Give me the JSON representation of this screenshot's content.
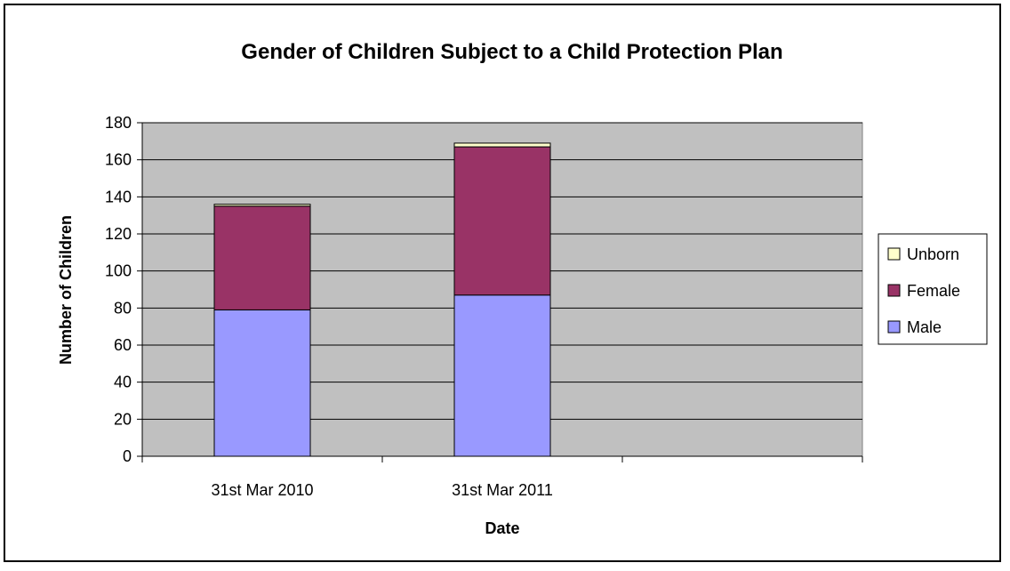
{
  "chart_data": {
    "type": "bar",
    "stacked": true,
    "title": "Gender of Children Subject to a Child Protection Plan",
    "xlabel": "Date",
    "ylabel": "Number of Children",
    "categories": [
      "31st Mar 2010",
      "31st Mar 2011",
      ""
    ],
    "ylim": [
      0,
      180
    ],
    "yticks": [
      0,
      20,
      40,
      60,
      80,
      100,
      120,
      140,
      160,
      180
    ],
    "grid": true,
    "legend_position": "right",
    "series": [
      {
        "name": "Male",
        "values": [
          79,
          87,
          null
        ],
        "color": "#9999FF"
      },
      {
        "name": "Female",
        "values": [
          56,
          80,
          null
        ],
        "color": "#993366"
      },
      {
        "name": "Unborn",
        "values": [
          1,
          2,
          null
        ],
        "color": "#FFFFCC"
      }
    ],
    "plot_background": "#C0C0C0"
  }
}
